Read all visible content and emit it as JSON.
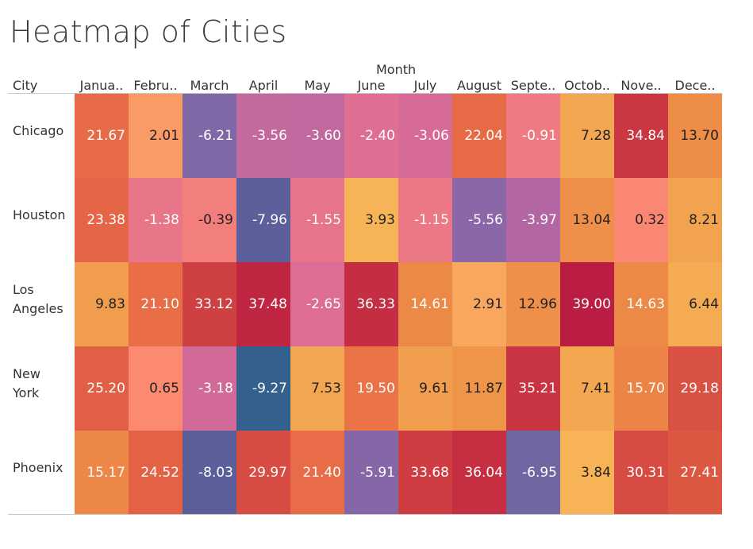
{
  "chart_data": {
    "type": "heatmap",
    "title": "Heatmap of Cities",
    "xlabel": "Month",
    "ylabel": "City",
    "columns": [
      "Janua..",
      "Febru..",
      "March",
      "April",
      "May",
      "June",
      "July",
      "August",
      "Septe..",
      "Octob..",
      "Nove..",
      "Dece.."
    ],
    "rows": [
      "Chicago",
      "Houston",
      "Los Angeles",
      "New York",
      "Phoenix"
    ],
    "values": [
      [
        21.67,
        2.01,
        -6.21,
        -3.56,
        -3.6,
        -2.4,
        -3.06,
        22.04,
        -0.91,
        7.28,
        34.84,
        13.7
      ],
      [
        23.38,
        -1.38,
        -0.39,
        -7.96,
        -1.55,
        3.93,
        -1.15,
        -5.56,
        -3.97,
        13.04,
        0.32,
        8.21
      ],
      [
        9.83,
        21.1,
        33.12,
        37.48,
        -2.65,
        36.33,
        14.61,
        2.91,
        12.96,
        39.0,
        14.63,
        6.44
      ],
      [
        25.2,
        0.65,
        -3.18,
        -9.27,
        7.53,
        19.5,
        9.61,
        11.87,
        35.21,
        7.41,
        15.7,
        29.18
      ],
      [
        15.17,
        24.52,
        -8.03,
        29.97,
        21.4,
        -5.91,
        33.68,
        36.04,
        -6.95,
        3.84,
        30.31,
        27.41
      ]
    ],
    "color_scale": {
      "stops": [
        -9.27,
        -8.0,
        -6.5,
        -4.5,
        -3.0,
        -1.5,
        0.5,
        4.0,
        9.0,
        14.0,
        20.0,
        28.0,
        34.0,
        39.0
      ],
      "colors": [
        "#33608c",
        "#5b5f99",
        "#7b68a6",
        "#9c65a8",
        "#d96b97",
        "#e8748a",
        "#fc8872",
        "#f7b555",
        "#f1a04f",
        "#ed8c47",
        "#eb7148",
        "#dc5643",
        "#cd3c42",
        "#bb1c42"
      ]
    }
  }
}
